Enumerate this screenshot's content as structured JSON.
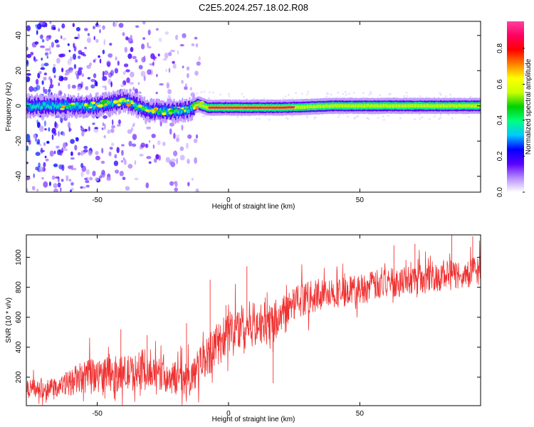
{
  "title": "C2E5.2024.257.18.02.R08",
  "chart_data": [
    {
      "type": "heatmap",
      "title": "C2E5.2024.257.18.02.R08",
      "xlabel": "Height of straight line (km)",
      "ylabel": "Frequency (Hz)",
      "xlim": [
        -77,
        96
      ],
      "ylim": [
        -49,
        48
      ],
      "x_ticks": [
        -50,
        0,
        50
      ],
      "y_ticks": [
        -40,
        -20,
        0,
        20,
        40
      ],
      "colorbar": {
        "label": "Normalized spectral amplitude",
        "range": [
          0,
          0.95
        ],
        "ticks": [
          0.0,
          0.2,
          0.4,
          0.6,
          0.8
        ],
        "colormap": [
          "#ffffff",
          "#b48cff",
          "#5a00ff",
          "#0000ff",
          "#00c8ff",
          "#00ff80",
          "#00d000",
          "#c8ff00",
          "#ffff00",
          "#ff8000",
          "#ff0000",
          "#ff0060",
          "#ff40a0"
        ]
      },
      "features": {
        "dominant_frequency_hz": 0,
        "center_line_frequency_hz": [
          [
            -75,
            0
          ],
          [
            -50,
            0
          ],
          [
            -40,
            3
          ],
          [
            -30,
            -3
          ],
          [
            -20,
            -3
          ],
          [
            -15,
            -2
          ],
          [
            -12,
            1
          ],
          [
            -8,
            -1
          ],
          [
            0,
            -1
          ],
          [
            20,
            -1
          ],
          [
            40,
            0
          ],
          [
            60,
            0
          ],
          [
            96,
            0
          ]
        ],
        "high_amplitude_core_x_range": [
          -8,
          25
        ],
        "scattered_noise_x_range": [
          -77,
          -13
        ]
      }
    },
    {
      "type": "line",
      "xlabel": "Height of straight line (km)",
      "ylabel": "SNR (10 * v/v)",
      "xlim": [
        -77,
        96
      ],
      "ylim": [
        10,
        1150
      ],
      "x_ticks": [
        -50,
        0,
        50
      ],
      "y_ticks": [
        200,
        400,
        600,
        800,
        1000
      ],
      "color": "#f03030",
      "series": [
        {
          "x": [
            -77,
            -70,
            -65,
            -60,
            -55,
            -50,
            -45,
            -40,
            -35,
            -30,
            -25,
            -20,
            -15,
            -10,
            -5,
            0,
            5,
            10,
            15,
            20,
            25,
            30,
            40,
            50,
            60,
            70,
            80,
            90,
            96
          ],
          "values": [
            120,
            125,
            130,
            170,
            200,
            210,
            220,
            225,
            230,
            220,
            210,
            190,
            180,
            300,
            400,
            500,
            540,
            560,
            560,
            620,
            700,
            730,
            760,
            790,
            830,
            850,
            870,
            890,
            920
          ],
          "noise_amplitude": [
            60,
            60,
            60,
            90,
            110,
            110,
            120,
            120,
            120,
            110,
            110,
            110,
            110,
            130,
            150,
            150,
            160,
            150,
            140,
            120,
            110,
            110,
            100,
            100,
            100,
            100,
            100,
            100,
            100
          ],
          "spikes": [
            [
              -41,
              520
            ],
            [
              -7,
              850
            ],
            [
              -1,
              680
            ],
            [
              7,
              940
            ],
            [
              17,
              160
            ],
            [
              -16,
              560
            ],
            [
              -31,
              480
            ],
            [
              63,
              1080
            ],
            [
              71,
              1090
            ],
            [
              85,
              1150
            ],
            [
              93,
              1140
            ]
          ]
        }
      ]
    }
  ]
}
